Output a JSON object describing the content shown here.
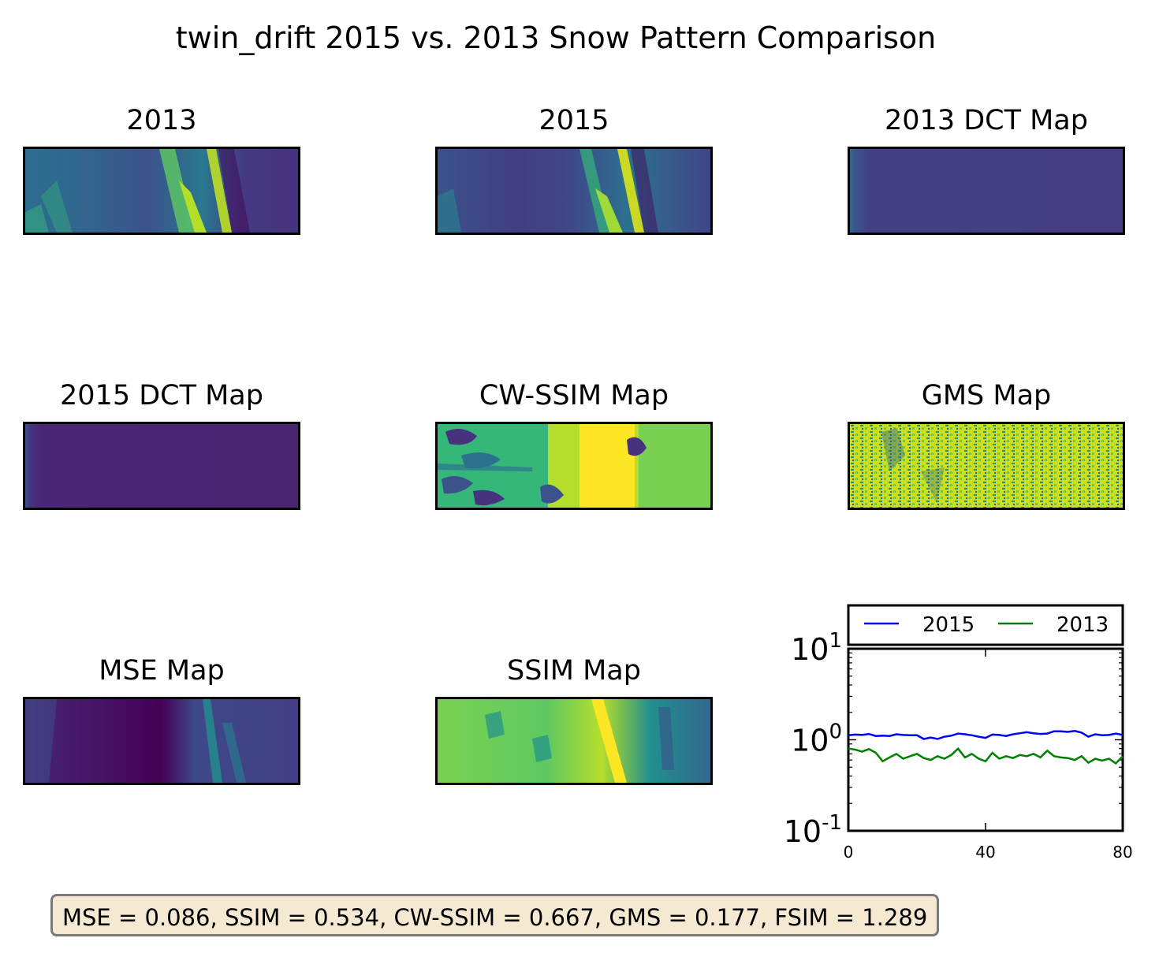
{
  "figure": {
    "title": "twin_drift 2015 vs. 2013 Snow Pattern Comparison"
  },
  "panels": [
    {
      "title": "2013",
      "style": "snow-2013"
    },
    {
      "title": "2015",
      "style": "snow-2015"
    },
    {
      "title": "2013 DCT Map",
      "style": "dct-2013"
    },
    {
      "title": "2015 DCT Map",
      "style": "dct-2015"
    },
    {
      "title": "CW-SSIM Map",
      "style": "cwssim"
    },
    {
      "title": "GMS Map",
      "style": "gms"
    },
    {
      "title": "MSE Map",
      "style": "mse"
    },
    {
      "title": "SSIM Map",
      "style": "ssim"
    }
  ],
  "metrics_text": "MSE = 0.086, SSIM = 0.534, CW-SSIM = 0.667, GMS = 0.177, FSIM = 1.289",
  "colors": {
    "viridis_dark": "#440154",
    "viridis_mid": "#21908d",
    "viridis_yellow": "#fde725",
    "series_2015": "#0000ff",
    "series_2013": "#008000",
    "metrics_box": "#f6e9d2"
  },
  "chart_data": {
    "type": "line",
    "yscale": "log",
    "ylim": [
      0.1,
      10
    ],
    "xlim": [
      0,
      80
    ],
    "x_ticks": [
      "0",
      "40",
      "80"
    ],
    "y_ticks": [
      "10^1",
      "10^0",
      "10^-1"
    ],
    "legend_position": "top (outside, above plot)",
    "series": [
      {
        "name": "2015",
        "color": "#0000ff",
        "x": [
          0,
          2,
          4,
          6,
          8,
          10,
          12,
          14,
          16,
          18,
          20,
          22,
          24,
          26,
          28,
          30,
          32,
          34,
          36,
          38,
          40,
          42,
          44,
          46,
          48,
          50,
          52,
          54,
          56,
          58,
          60,
          62,
          64,
          66,
          68,
          70,
          72,
          74,
          76,
          78,
          80
        ],
        "values": [
          1.12,
          1.14,
          1.13,
          1.16,
          1.1,
          1.11,
          1.1,
          1.15,
          1.13,
          1.12,
          1.12,
          1.02,
          1.06,
          1.02,
          1.08,
          1.11,
          1.17,
          1.15,
          1.12,
          1.08,
          1.05,
          1.14,
          1.13,
          1.1,
          1.15,
          1.18,
          1.21,
          1.18,
          1.16,
          1.17,
          1.24,
          1.24,
          1.22,
          1.25,
          1.2,
          1.08,
          1.15,
          1.12,
          1.13,
          1.17,
          1.13
        ]
      },
      {
        "name": "2013",
        "color": "#008000",
        "x": [
          0,
          2,
          4,
          6,
          8,
          10,
          12,
          14,
          16,
          18,
          20,
          22,
          24,
          26,
          28,
          30,
          32,
          34,
          36,
          38,
          40,
          42,
          44,
          46,
          48,
          50,
          52,
          54,
          56,
          58,
          60,
          62,
          64,
          66,
          68,
          70,
          72,
          74,
          76,
          78,
          80
        ],
        "values": [
          0.8,
          0.78,
          0.74,
          0.79,
          0.72,
          0.58,
          0.64,
          0.7,
          0.62,
          0.66,
          0.7,
          0.63,
          0.6,
          0.66,
          0.62,
          0.68,
          0.8,
          0.64,
          0.7,
          0.62,
          0.58,
          0.72,
          0.62,
          0.66,
          0.63,
          0.68,
          0.66,
          0.7,
          0.64,
          0.76,
          0.66,
          0.64,
          0.63,
          0.6,
          0.66,
          0.56,
          0.62,
          0.59,
          0.62,
          0.55,
          0.66
        ]
      }
    ]
  }
}
